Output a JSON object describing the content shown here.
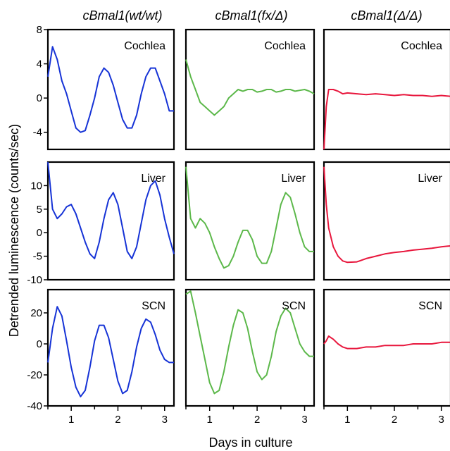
{
  "figure": {
    "column_titles": [
      "cBmal1(wt/wt)",
      "cBmal1(fx/Δ)",
      "cBmal1(Δ/Δ)"
    ],
    "ylabel": "Detrended luminescence (counts/sec)",
    "xlabel": "Days in culture",
    "row_labels": [
      "Cochlea",
      "Liver",
      "SCN"
    ],
    "column_colors": [
      "#1633d6",
      "#5cb84a",
      "#e8173d"
    ]
  },
  "chart_data": [
    {
      "type": "line",
      "panel": "cochlea-wt",
      "title": "Cochlea",
      "column": "cBmal1(wt/wt)",
      "xlabel": "Days in culture",
      "ylabel": "Detrended luminescence (counts/sec)",
      "xlim": [
        0.5,
        3.2
      ],
      "ylim": [
        -6,
        8
      ],
      "xticks": [
        1,
        2,
        3
      ],
      "yticks": [
        -4,
        0,
        4,
        8
      ],
      "x": [
        0.5,
        0.6,
        0.7,
        0.8,
        0.9,
        1.0,
        1.1,
        1.2,
        1.3,
        1.4,
        1.5,
        1.6,
        1.7,
        1.8,
        1.9,
        2.0,
        2.1,
        2.2,
        2.3,
        2.4,
        2.5,
        2.6,
        2.7,
        2.8,
        2.9,
        3.0,
        3.1,
        3.2
      ],
      "values": [
        2.5,
        6.0,
        4.5,
        2.0,
        0.5,
        -1.5,
        -3.5,
        -4.0,
        -3.8,
        -2.0,
        0.0,
        2.5,
        3.5,
        3.0,
        1.5,
        -0.5,
        -2.5,
        -3.5,
        -3.5,
        -2.0,
        0.5,
        2.5,
        3.5,
        3.5,
        2.0,
        0.5,
        -1.5,
        -1.5
      ]
    },
    {
      "type": "line",
      "panel": "cochlea-fx",
      "title": "Cochlea",
      "column": "cBmal1(fx/Δ)",
      "xlim": [
        0.5,
        3.2
      ],
      "ylim": [
        -6,
        8
      ],
      "xticks": [
        1,
        2,
        3
      ],
      "yticks": [
        -4,
        0,
        4,
        8
      ],
      "x": [
        0.5,
        0.6,
        0.7,
        0.8,
        0.9,
        1.0,
        1.1,
        1.2,
        1.3,
        1.4,
        1.5,
        1.6,
        1.7,
        1.8,
        1.9,
        2.0,
        2.1,
        2.2,
        2.3,
        2.4,
        2.5,
        2.6,
        2.7,
        2.8,
        2.9,
        3.0,
        3.1,
        3.2
      ],
      "values": [
        4.5,
        2.5,
        1.0,
        -0.5,
        -1.0,
        -1.5,
        -2.0,
        -1.5,
        -1.0,
        0.0,
        0.5,
        1.0,
        0.8,
        1.0,
        1.0,
        0.7,
        0.8,
        1.0,
        1.0,
        0.7,
        0.8,
        1.0,
        1.0,
        0.8,
        0.9,
        1.0,
        0.8,
        0.5
      ]
    },
    {
      "type": "line",
      "panel": "cochlea-null",
      "title": "Cochlea",
      "column": "cBmal1(Δ/Δ)",
      "xlim": [
        0.5,
        3.2
      ],
      "ylim": [
        -6,
        8
      ],
      "xticks": [
        1,
        2,
        3
      ],
      "yticks": [
        -4,
        0,
        4,
        8
      ],
      "x": [
        0.5,
        0.55,
        0.6,
        0.7,
        0.8,
        0.9,
        1.0,
        1.2,
        1.4,
        1.6,
        1.8,
        2.0,
        2.2,
        2.4,
        2.6,
        2.8,
        3.0,
        3.2
      ],
      "values": [
        -6.0,
        -1.0,
        1.0,
        1.0,
        0.8,
        0.5,
        0.6,
        0.5,
        0.4,
        0.5,
        0.4,
        0.3,
        0.4,
        0.3,
        0.3,
        0.2,
        0.3,
        0.2
      ]
    },
    {
      "type": "line",
      "panel": "liver-wt",
      "title": "Liver",
      "column": "cBmal1(wt/wt)",
      "xlim": [
        0.5,
        3.2
      ],
      "ylim": [
        -10,
        15
      ],
      "xticks": [
        1,
        2,
        3
      ],
      "yticks": [
        -10,
        -5,
        0,
        5,
        10
      ],
      "x": [
        0.5,
        0.6,
        0.7,
        0.8,
        0.9,
        1.0,
        1.1,
        1.2,
        1.3,
        1.4,
        1.5,
        1.6,
        1.7,
        1.8,
        1.9,
        2.0,
        2.1,
        2.2,
        2.3,
        2.4,
        2.5,
        2.6,
        2.7,
        2.8,
        2.9,
        3.0,
        3.1,
        3.2
      ],
      "values": [
        15.0,
        5.0,
        3.0,
        4.0,
        5.5,
        6.0,
        4.0,
        1.0,
        -2.0,
        -4.5,
        -5.5,
        -2.0,
        3.0,
        7.0,
        8.5,
        6.0,
        1.0,
        -4.0,
        -5.5,
        -3.0,
        2.0,
        7.0,
        10.0,
        11.0,
        8.0,
        3.0,
        -1.0,
        -4.5
      ]
    },
    {
      "type": "line",
      "panel": "liver-fx",
      "title": "Liver",
      "column": "cBmal1(fx/Δ)",
      "xlim": [
        0.5,
        3.2
      ],
      "ylim": [
        -10,
        15
      ],
      "xticks": [
        1,
        2,
        3
      ],
      "yticks": [
        -10,
        -5,
        0,
        5,
        10
      ],
      "x": [
        0.5,
        0.6,
        0.7,
        0.8,
        0.9,
        1.0,
        1.1,
        1.2,
        1.3,
        1.4,
        1.5,
        1.6,
        1.7,
        1.8,
        1.9,
        2.0,
        2.1,
        2.2,
        2.3,
        2.4,
        2.5,
        2.6,
        2.7,
        2.8,
        2.9,
        3.0,
        3.1,
        3.2
      ],
      "values": [
        14.0,
        3.0,
        1.0,
        3.0,
        2.0,
        0.0,
        -3.0,
        -5.5,
        -7.5,
        -7.0,
        -5.0,
        -2.0,
        0.5,
        0.5,
        -1.5,
        -5.0,
        -6.5,
        -6.5,
        -4.0,
        1.0,
        6.0,
        8.5,
        7.5,
        4.0,
        0.0,
        -3.0,
        -4.0,
        -4.0
      ]
    },
    {
      "type": "line",
      "panel": "liver-null",
      "title": "Liver",
      "column": "cBmal1(Δ/Δ)",
      "xlim": [
        0.5,
        3.2
      ],
      "ylim": [
        -10,
        15
      ],
      "xticks": [
        1,
        2,
        3
      ],
      "yticks": [
        -10,
        -5,
        0,
        5,
        10
      ],
      "x": [
        0.5,
        0.55,
        0.6,
        0.7,
        0.8,
        0.9,
        1.0,
        1.2,
        1.4,
        1.6,
        1.8,
        2.0,
        2.2,
        2.4,
        2.6,
        2.8,
        3.0,
        3.2
      ],
      "values": [
        14.0,
        6.0,
        1.0,
        -3.0,
        -5.0,
        -6.0,
        -6.3,
        -6.2,
        -5.5,
        -5.0,
        -4.5,
        -4.2,
        -4.0,
        -3.7,
        -3.5,
        -3.3,
        -3.0,
        -2.8
      ]
    },
    {
      "type": "line",
      "panel": "scn-wt",
      "title": "SCN",
      "column": "cBmal1(wt/wt)",
      "xlim": [
        0.5,
        3.2
      ],
      "ylim": [
        -40,
        35
      ],
      "xticks": [
        1,
        2,
        3
      ],
      "yticks": [
        -40,
        -20,
        0,
        20
      ],
      "x": [
        0.5,
        0.6,
        0.7,
        0.8,
        0.9,
        1.0,
        1.1,
        1.2,
        1.3,
        1.4,
        1.5,
        1.6,
        1.7,
        1.8,
        1.9,
        2.0,
        2.1,
        2.2,
        2.3,
        2.4,
        2.5,
        2.6,
        2.7,
        2.8,
        2.9,
        3.0,
        3.1,
        3.2
      ],
      "values": [
        -12.0,
        10.0,
        24.0,
        18.0,
        2.0,
        -15.0,
        -28.0,
        -34.0,
        -30.0,
        -15.0,
        2.0,
        12.0,
        12.0,
        4.0,
        -10.0,
        -24.0,
        -32.0,
        -30.0,
        -18.0,
        -2.0,
        10.0,
        16.0,
        14.0,
        6.0,
        -4.0,
        -10.0,
        -12.0,
        -12.0
      ]
    },
    {
      "type": "line",
      "panel": "scn-fx",
      "title": "SCN",
      "column": "cBmal1(fx/Δ)",
      "xlim": [
        0.5,
        3.2
      ],
      "ylim": [
        -40,
        35
      ],
      "xticks": [
        1,
        2,
        3
      ],
      "yticks": [
        -40,
        -20,
        0,
        20
      ],
      "x": [
        0.5,
        0.6,
        0.7,
        0.8,
        0.9,
        1.0,
        1.1,
        1.2,
        1.3,
        1.4,
        1.5,
        1.6,
        1.7,
        1.8,
        1.9,
        2.0,
        2.1,
        2.2,
        2.3,
        2.4,
        2.5,
        2.6,
        2.7,
        2.8,
        2.9,
        3.0,
        3.1,
        3.2
      ],
      "values": [
        32.0,
        34.0,
        20.0,
        5.0,
        -10.0,
        -25.0,
        -32.0,
        -30.0,
        -18.0,
        -2.0,
        12.0,
        22.0,
        20.0,
        10.0,
        -5.0,
        -18.0,
        -23.0,
        -20.0,
        -8.0,
        8.0,
        18.0,
        23.0,
        20.0,
        10.0,
        0.0,
        -5.0,
        -8.0,
        -8.0
      ]
    },
    {
      "type": "line",
      "panel": "scn-null",
      "title": "SCN",
      "column": "cBmal1(Δ/Δ)",
      "xlim": [
        0.5,
        3.2
      ],
      "ylim": [
        -40,
        35
      ],
      "xticks": [
        1,
        2,
        3
      ],
      "yticks": [
        -40,
        -20,
        0,
        20
      ],
      "x": [
        0.5,
        0.55,
        0.6,
        0.7,
        0.8,
        0.9,
        1.0,
        1.2,
        1.4,
        1.6,
        1.8,
        2.0,
        2.2,
        2.4,
        2.6,
        2.8,
        3.0,
        3.2
      ],
      "values": [
        0.0,
        2.0,
        5.0,
        3.0,
        0.0,
        -2.0,
        -3.0,
        -3.0,
        -2.0,
        -2.0,
        -1.0,
        -1.0,
        -1.0,
        0.0,
        0.0,
        0.0,
        1.0,
        1.0
      ]
    }
  ]
}
